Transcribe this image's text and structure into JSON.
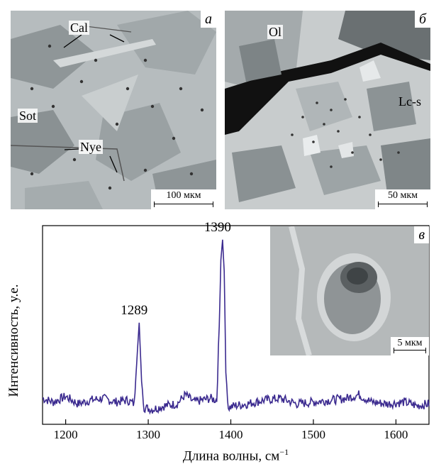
{
  "panels": {
    "a": {
      "label": "а",
      "scale": "100 мкм",
      "minerals": [
        "Cal",
        "Sot",
        "Nye"
      ]
    },
    "b": {
      "label": "б",
      "scale": "50 мкм",
      "minerals": [
        "Ol",
        "Lc-s"
      ]
    },
    "v": {
      "label": "в",
      "scale": "5 мкм"
    }
  },
  "chart_data": {
    "type": "line",
    "xlabel": "Длина волны, см",
    "xlabel_sup": "−1",
    "ylabel": "Интенсивность, у.е.",
    "xlim": [
      1172,
      1640
    ],
    "ylim": [
      0,
      1
    ],
    "xticks": [
      "1200",
      "1300",
      "1400",
      "1500",
      "1600"
    ],
    "xtick_values": [
      1200,
      1300,
      1400,
      1500,
      1600
    ],
    "peaks": [
      {
        "label": "1289",
        "x": 1289,
        "y": 0.52
      },
      {
        "label": "1390",
        "x": 1390,
        "y": 0.97
      }
    ],
    "baseline": 0.08,
    "series": [
      {
        "color": "#3b2a8f",
        "x": [
          1172,
          1185,
          1200,
          1215,
          1230,
          1245,
          1260,
          1275,
          1283,
          1286,
          1289,
          1292,
          1295,
          1305,
          1320,
          1335,
          1345,
          1355,
          1365,
          1375,
          1383,
          1386,
          1388,
          1390,
          1392,
          1394,
          1397,
          1405,
          1420,
          1440,
          1460,
          1480,
          1500,
          1520,
          1540,
          1555,
          1570,
          1590,
          1610,
          1625,
          1640
        ],
        "y": [
          0.11,
          0.09,
          0.12,
          0.08,
          0.1,
          0.11,
          0.09,
          0.1,
          0.08,
          0.3,
          0.52,
          0.2,
          0.06,
          0.05,
          0.07,
          0.08,
          0.13,
          0.09,
          0.1,
          0.11,
          0.1,
          0.5,
          0.86,
          0.97,
          0.8,
          0.25,
          0.06,
          0.07,
          0.08,
          0.1,
          0.11,
          0.08,
          0.09,
          0.1,
          0.11,
          0.13,
          0.09,
          0.08,
          0.09,
          0.07,
          0.08
        ]
      }
    ]
  }
}
